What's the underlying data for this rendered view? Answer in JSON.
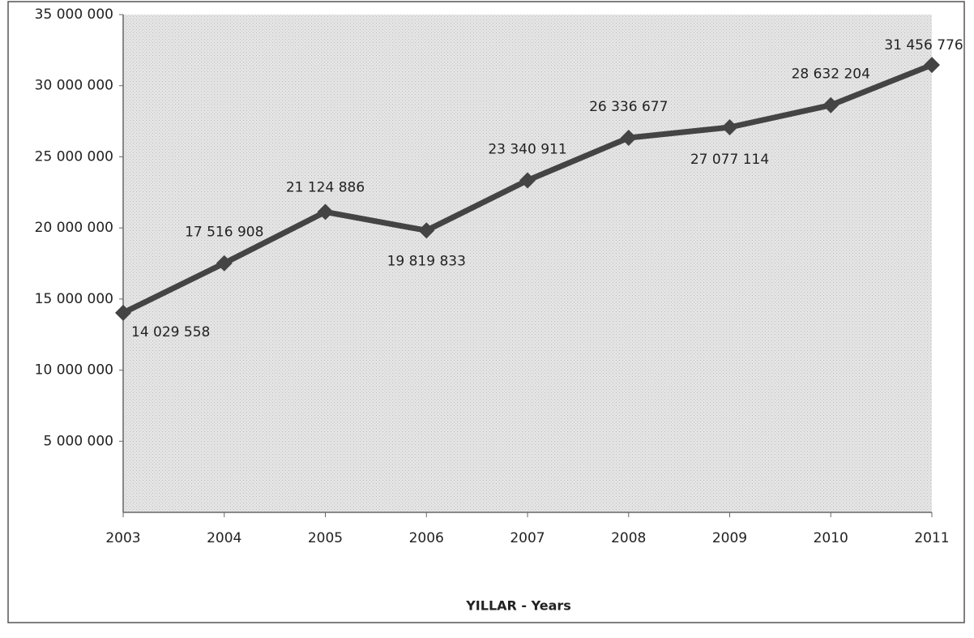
{
  "chart_data": {
    "type": "line",
    "x_label": "YILLAR - Years",
    "categories": [
      "2003",
      "2004",
      "2005",
      "2006",
      "2007",
      "2008",
      "2009",
      "2010",
      "2011"
    ],
    "series": [
      {
        "color": "#444444",
        "values": [
          14029558,
          17516908,
          21124886,
          19819833,
          23340911,
          26336677,
          27077114,
          28632204,
          31456776
        ],
        "value_labels": [
          "14 029 558",
          "17 516 908",
          "21 124 886",
          "19 819 833",
          "23 340 911",
          "26 336 677",
          "27 077 114",
          "28 632 204",
          "31 456 776"
        ]
      }
    ],
    "ylim": [
      0,
      35000000
    ],
    "yticks": [
      {
        "value": 5000000,
        "label": "5 000 000"
      },
      {
        "value": 10000000,
        "label": "10 000 000"
      },
      {
        "value": 15000000,
        "label": "15 000 000"
      },
      {
        "value": 20000000,
        "label": "20 000 000"
      },
      {
        "value": 25000000,
        "label": "25 000 000"
      },
      {
        "value": 30000000,
        "label": "30 000 000"
      },
      {
        "value": 35000000,
        "label": "35 000 000"
      }
    ],
    "grid": false
  }
}
